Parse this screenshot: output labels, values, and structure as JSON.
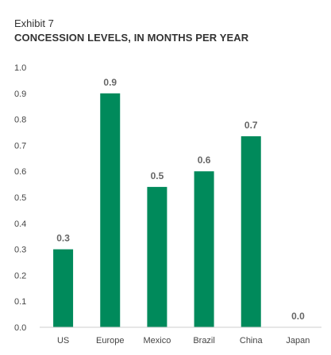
{
  "exhibit": "Exhibit 7",
  "colors": {
    "bar": "#008A5B",
    "axis": "#cccccc",
    "text": "#333333"
  },
  "chart_data": {
    "type": "bar",
    "title": "CONCESSION LEVELS, IN MONTHS PER YEAR",
    "categories": [
      "US",
      "Europe",
      "Mexico",
      "Brazil",
      "China",
      "Japan"
    ],
    "values": [
      0.3,
      0.9,
      0.54,
      0.6,
      0.735,
      0.0
    ],
    "data_labels": [
      "0.3",
      "0.9",
      "0.5",
      "0.6",
      "0.7",
      "0.0"
    ],
    "yticks": [
      "0.0",
      "0.1",
      "0.2",
      "0.3",
      "0.4",
      "0.5",
      "0.6",
      "0.7",
      "0.8",
      "0.9",
      "1.0"
    ],
    "ylim": [
      0,
      1.0
    ],
    "grid": false
  }
}
